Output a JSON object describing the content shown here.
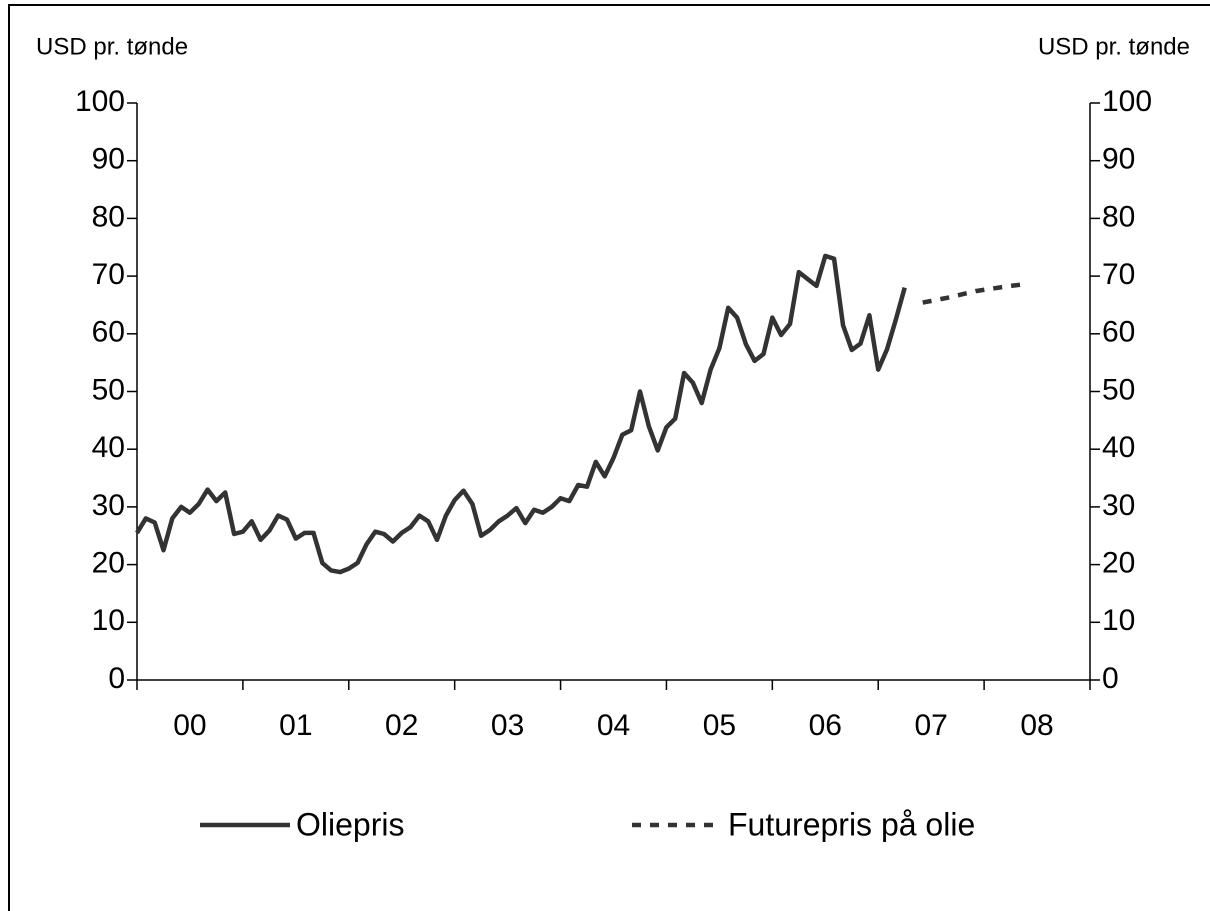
{
  "chart_data": {
    "type": "line",
    "y_label": "USD pr. tønde",
    "y2_label": "USD pr. tønde",
    "xlim": [
      0,
      9
    ],
    "xticks": [
      {
        "value": 0.5,
        "label": "00"
      },
      {
        "value": 1.5,
        "label": "01"
      },
      {
        "value": 2.5,
        "label": "02"
      },
      {
        "value": 3.5,
        "label": "03"
      },
      {
        "value": 4.5,
        "label": "04"
      },
      {
        "value": 5.5,
        "label": "05"
      },
      {
        "value": 6.5,
        "label": "06"
      },
      {
        "value": 7.5,
        "label": "07"
      },
      {
        "value": 8.5,
        "label": "08"
      }
    ],
    "ylim": [
      0,
      100
    ],
    "yticks": [
      0,
      10,
      20,
      30,
      40,
      50,
      60,
      70,
      80,
      90,
      100
    ],
    "y2lim": [
      0,
      100
    ],
    "y2ticks": [
      0,
      10,
      20,
      30,
      40,
      50,
      60,
      70,
      80,
      90,
      100
    ],
    "series": [
      {
        "name": "Oliepris",
        "color": "#333333",
        "dash": false,
        "x": [
          0,
          0.083,
          0.167,
          0.25,
          0.333,
          0.417,
          0.5,
          0.583,
          0.667,
          0.75,
          0.833,
          0.917,
          1,
          1.083,
          1.167,
          1.25,
          1.333,
          1.417,
          1.5,
          1.583,
          1.667,
          1.75,
          1.833,
          1.917,
          2,
          2.083,
          2.167,
          2.25,
          2.333,
          2.417,
          2.5,
          2.583,
          2.667,
          2.75,
          2.833,
          2.917,
          3,
          3.083,
          3.167,
          3.25,
          3.333,
          3.417,
          3.5,
          3.583,
          3.667,
          3.75,
          3.833,
          3.917,
          4,
          4.083,
          4.167,
          4.25,
          4.333,
          4.417,
          4.5,
          4.583,
          4.667,
          4.75,
          4.833,
          4.917,
          5,
          5.083,
          5.167,
          5.25,
          5.333,
          5.417,
          5.5,
          5.583,
          5.667,
          5.75,
          5.833,
          5.917,
          6,
          6.083,
          6.167,
          6.25,
          6.333,
          6.417,
          6.5,
          6.583,
          6.667,
          6.75,
          6.833,
          6.917,
          7,
          7.083,
          7.167,
          7.25
        ],
        "values": [
          25.5,
          28,
          27.3,
          22.5,
          28,
          30,
          29,
          30.5,
          33,
          31,
          32.5,
          25.3,
          25.7,
          27.5,
          24.3,
          25.9,
          28.5,
          27.8,
          24.5,
          25.5,
          25.5,
          20.3,
          19,
          18.7,
          19.3,
          20.3,
          23.5,
          25.7,
          25.3,
          24,
          25.5,
          26.5,
          28.5,
          27.5,
          24.3,
          28.5,
          31.2,
          32.8,
          30.5,
          25,
          26,
          27.5,
          28.5,
          29.8,
          27.2,
          29.5,
          29,
          30,
          31.5,
          31,
          33.8,
          33.5,
          37.8,
          35.3,
          38.5,
          42.5,
          43.3,
          50,
          44,
          39.8,
          43.8,
          45.3,
          53.2,
          51.5,
          48,
          53.8,
          57.5,
          64.5,
          62.8,
          58.2,
          55.3,
          56.5,
          62.8,
          59.8,
          61.7,
          70.7,
          69.5,
          68.3,
          73.5,
          73,
          61.5,
          57.2,
          58.3,
          63.2,
          53.8,
          57.3,
          62.5,
          68
        ]
      },
      {
        "name": "Futurepris på olie",
        "color": "#333333",
        "dash": true,
        "x": [
          7.42,
          7.67,
          7.92,
          8.17,
          8.42
        ],
        "values": [
          65.4,
          66.3,
          67.4,
          68.1,
          68.7
        ]
      }
    ]
  }
}
